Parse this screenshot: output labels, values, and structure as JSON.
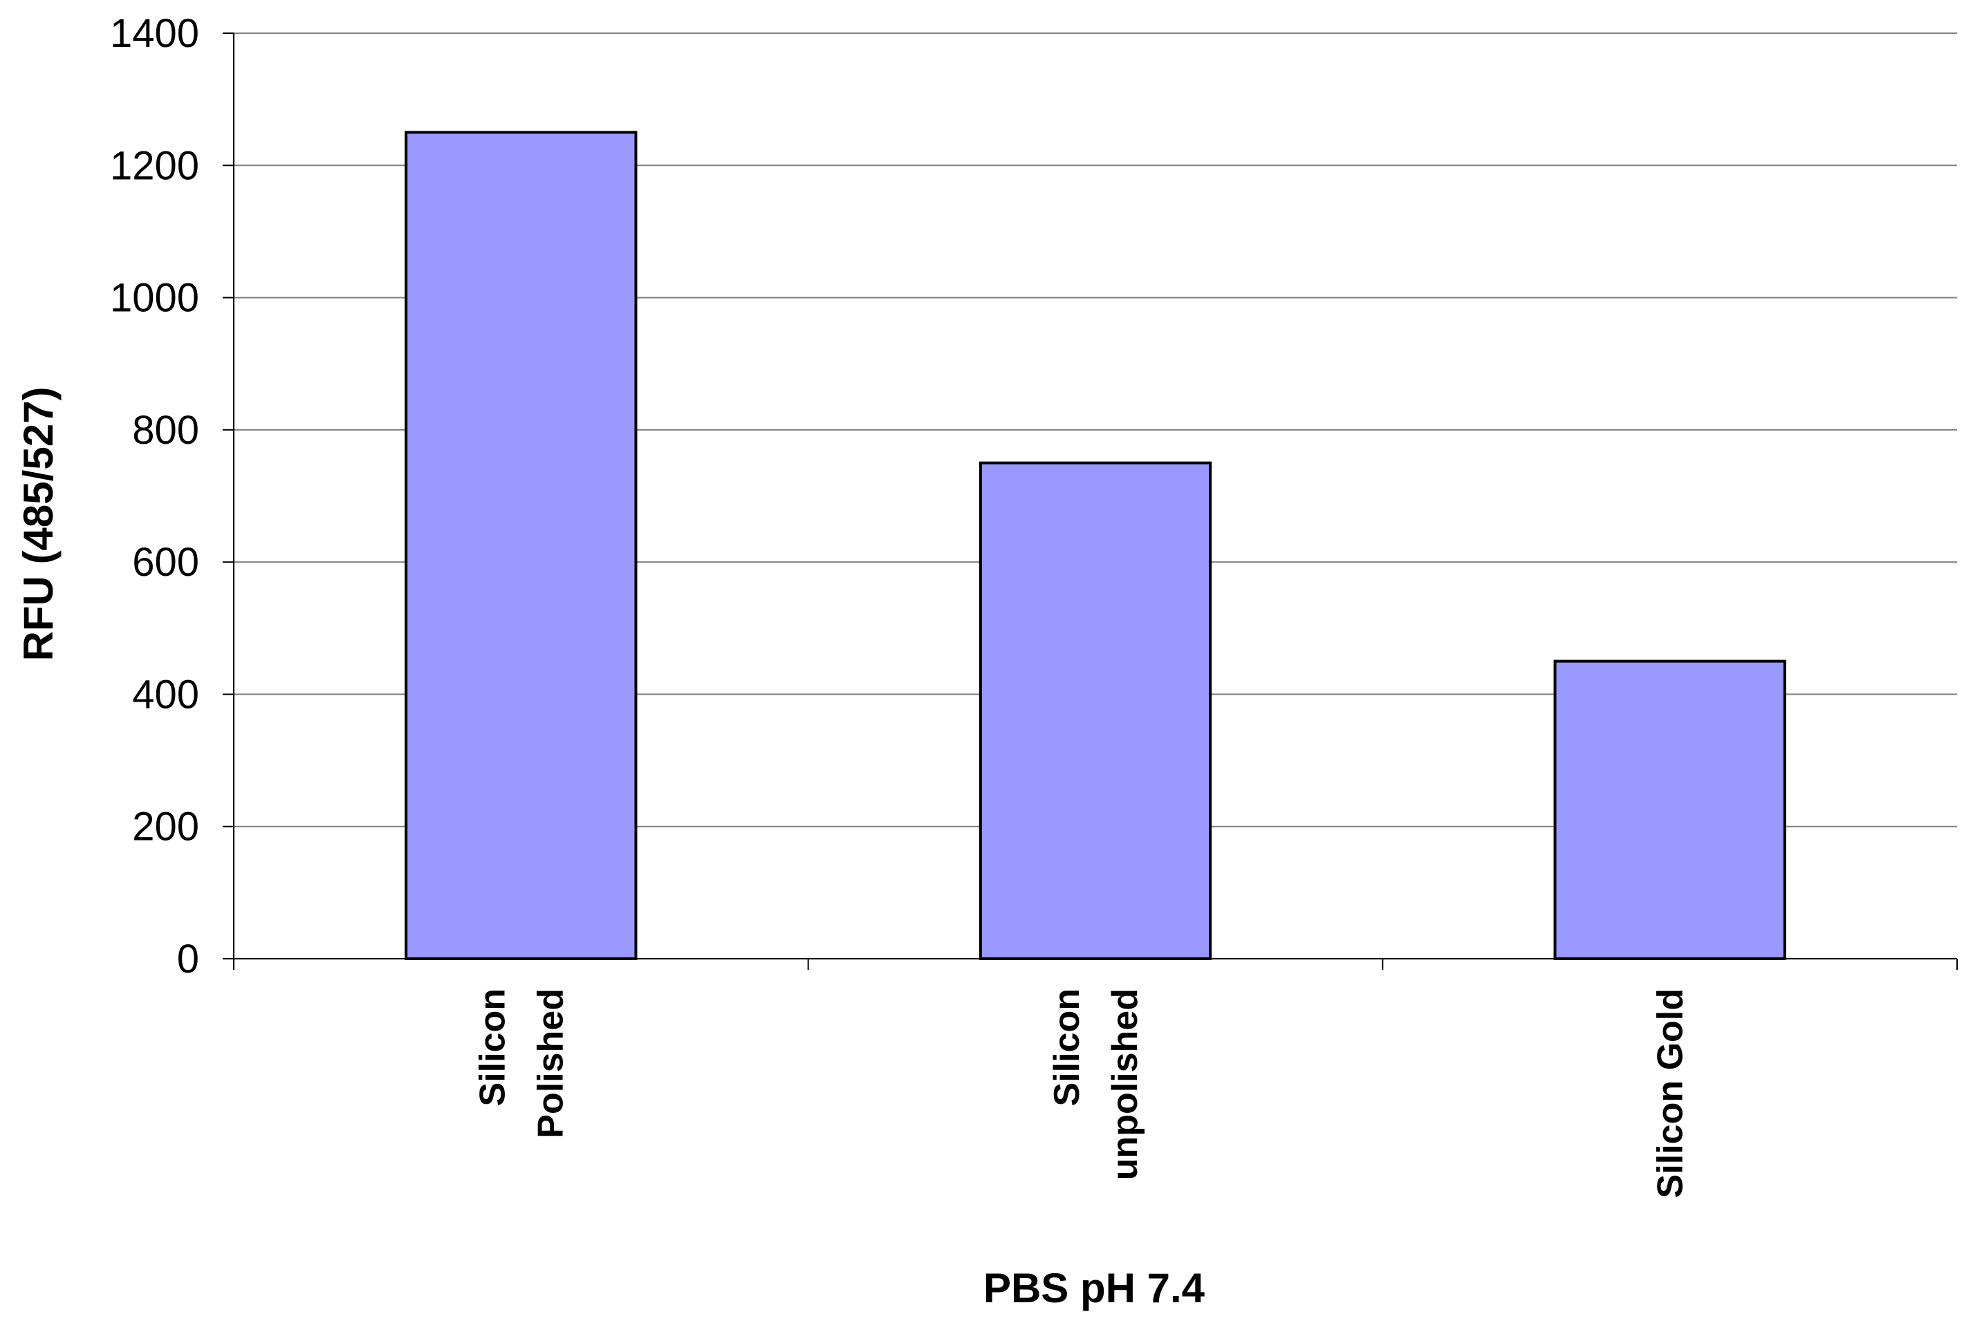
{
  "chart_data": {
    "type": "bar",
    "title": "",
    "xlabel": "PBS pH 7.4",
    "ylabel": "RFU (485/527)",
    "categories": [
      [
        "Silicon",
        "Polished"
      ],
      [
        "Silicon",
        "unpolished"
      ],
      [
        "Silicon Gold"
      ]
    ],
    "values": [
      1250,
      750,
      450
    ],
    "ylim": [
      0,
      1400
    ],
    "yticks": [
      0,
      200,
      400,
      600,
      800,
      1000,
      1200,
      1400
    ],
    "grid": true,
    "legend": "none",
    "bar_color": "#9999ff",
    "bar_edge_color": "#000000",
    "gridline_color": "#808080"
  }
}
